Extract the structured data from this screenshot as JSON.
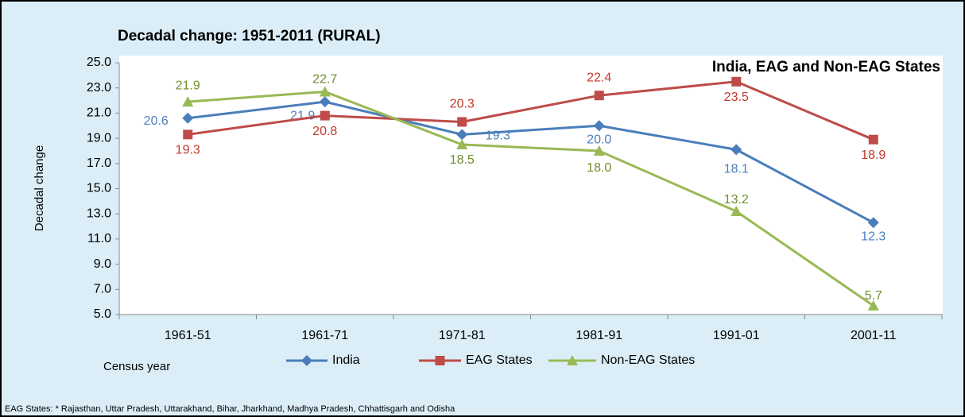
{
  "chart_data": {
    "type": "line",
    "title": "Decadal change: 1951-2011 (RURAL)",
    "subtitle": "India, EAG and Non-EAG States",
    "y_label": "Decadal change",
    "x_label": "Census year",
    "footnote": "EAG States: * Rajasthan, Uttar Pradesh, Uttarakhand, Bihar, Jharkhand, Madhya Pradesh, Chhattisgarh and Odisha",
    "categories": [
      "1961-51",
      "1961-71",
      "1971-81",
      "1981-91",
      "1991-01",
      "2001-11"
    ],
    "series": [
      {
        "name": "India",
        "color": "#4a7ebb",
        "marker": "diamond",
        "values": [
          20.6,
          21.9,
          19.3,
          20.0,
          18.1,
          12.3
        ],
        "value_labels": [
          "20.6",
          "21.9",
          "19.3",
          "20.0",
          "18.1",
          "12.3"
        ]
      },
      {
        "name": "EAG States",
        "color": "#be4b48",
        "marker": "square",
        "values": [
          19.3,
          20.8,
          20.3,
          22.4,
          23.5,
          18.9
        ],
        "value_labels": [
          "19.3",
          "20.8",
          "20.3",
          "22.4",
          "23.5",
          "18.9"
        ]
      },
      {
        "name": "Non-EAG States",
        "color": "#98b954",
        "marker": "triangle",
        "values": [
          21.9,
          22.7,
          18.5,
          18.0,
          13.2,
          5.7
        ],
        "value_labels": [
          "21.9",
          "22.7",
          "18.5",
          "18.0",
          "13.2",
          "5.7"
        ]
      }
    ],
    "ylim": [
      5,
      25
    ],
    "yticks": [
      {
        "value": 5,
        "label": "5.0"
      },
      {
        "value": 7,
        "label": "7.0"
      },
      {
        "value": 9,
        "label": "9.0"
      },
      {
        "value": 11,
        "label": "11.0"
      },
      {
        "value": 13,
        "label": "13.0"
      },
      {
        "value": 15,
        "label": "15.0"
      },
      {
        "value": 17,
        "label": "17.0"
      },
      {
        "value": 19,
        "label": "19.0"
      },
      {
        "value": 21,
        "label": "21.0"
      },
      {
        "value": 23,
        "label": "23.0"
      },
      {
        "value": 25,
        "label": "25.0"
      }
    ],
    "grid": false
  }
}
